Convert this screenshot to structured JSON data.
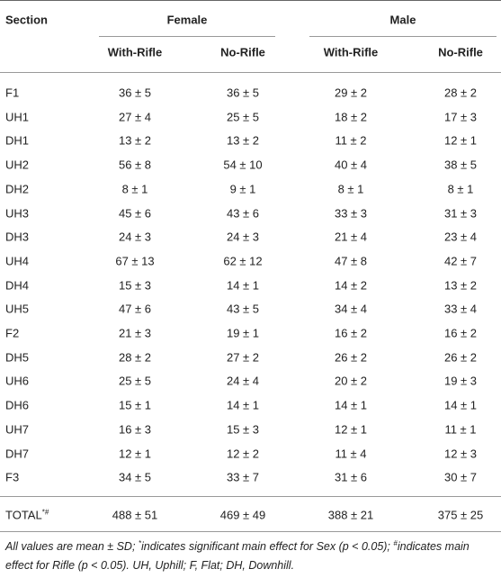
{
  "header": {
    "section": "Section",
    "groups": [
      "Female",
      "Male"
    ],
    "subheaders": [
      "With-Rifle",
      "No-Rifle",
      "With-Rifle",
      "No-Rifle"
    ]
  },
  "rows": [
    [
      "F1",
      "36 ± 5",
      "36 ± 5",
      "29 ± 2",
      "28 ± 2"
    ],
    [
      "UH1",
      "27 ± 4",
      "25 ± 5",
      "18 ± 2",
      "17 ± 3"
    ],
    [
      "DH1",
      "13 ± 2",
      "13 ± 2",
      "11 ± 2",
      "12 ± 1"
    ],
    [
      "UH2",
      "56 ± 8",
      "54 ± 10",
      "40 ± 4",
      "38 ± 5"
    ],
    [
      "DH2",
      "8 ± 1",
      "9 ± 1",
      "8 ± 1",
      "8 ± 1"
    ],
    [
      "UH3",
      "45 ± 6",
      "43 ± 6",
      "33 ± 3",
      "31 ± 3"
    ],
    [
      "DH3",
      "24 ± 3",
      "24 ± 3",
      "21 ± 4",
      "23 ± 4"
    ],
    [
      "UH4",
      "67 ± 13",
      "62 ± 12",
      "47 ± 8",
      "42 ± 7"
    ],
    [
      "DH4",
      "15 ± 3",
      "14 ± 1",
      "14 ± 2",
      "13 ± 2"
    ],
    [
      "UH5",
      "47 ± 6",
      "43 ± 5",
      "34 ± 4",
      "33 ± 4"
    ],
    [
      "F2",
      "21 ± 3",
      "19 ± 1",
      "16 ± 2",
      "16 ± 2"
    ],
    [
      "DH5",
      "28 ± 2",
      "27 ± 2",
      "26 ± 2",
      "26 ± 2"
    ],
    [
      "UH6",
      "25 ± 5",
      "24 ± 4",
      "20 ± 2",
      "19 ± 3"
    ],
    [
      "DH6",
      "15 ± 1",
      "14 ± 1",
      "14 ± 1",
      "14 ± 1"
    ],
    [
      "UH7",
      "16 ± 3",
      "15 ± 3",
      "12 ± 1",
      "11 ± 1"
    ],
    [
      "DH7",
      "12 ± 1",
      "12 ± 2",
      "11 ± 4",
      "12 ± 3"
    ],
    [
      "F3",
      "34 ± 5",
      "33 ± 7",
      "31 ± 6",
      "30 ± 7"
    ]
  ],
  "total": {
    "label": "TOTAL",
    "mark": "*#",
    "values": [
      "488 ± 51",
      "469 ± 49",
      "388 ± 21",
      "375 ± 25"
    ]
  },
  "footnote": [
    "All values are mean ± SD; ",
    "*",
    "indicates significant main effect for Sex (p < 0.05); ",
    "#",
    "indicates main effect for Rifle (p < 0.05). UH, Uphill; F, Flat; DH, Downhill."
  ]
}
